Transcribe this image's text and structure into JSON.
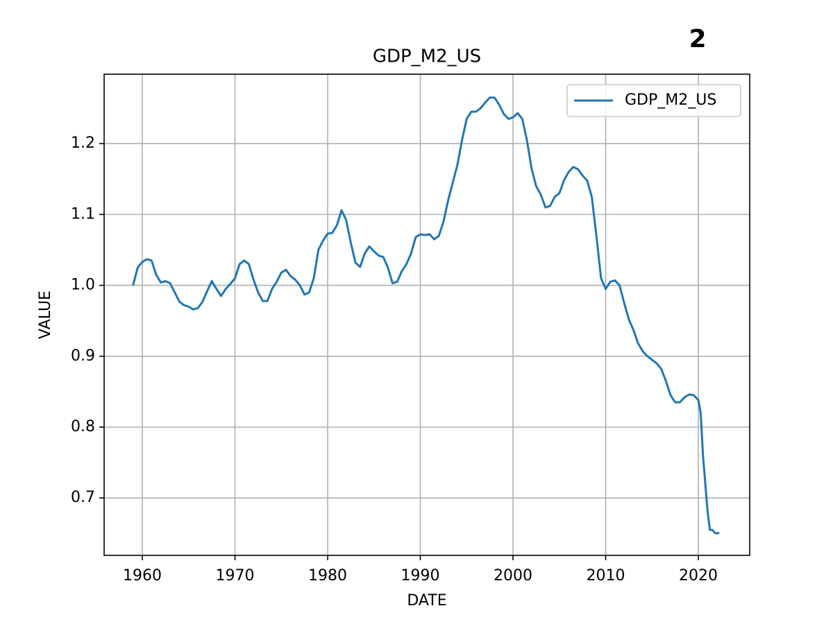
{
  "chart_data": {
    "type": "line",
    "title": "GDP_M2_US",
    "annotation": "2",
    "xlabel": "DATE",
    "ylabel": "VALUE",
    "x": [
      1959,
      1959.5,
      1960,
      1960.5,
      1961,
      1961.5,
      1962,
      1962.5,
      1963,
      1963.5,
      1964,
      1964.5,
      1965,
      1965.5,
      1966,
      1966.5,
      1967,
      1967.5,
      1968,
      1968.5,
      1969,
      1969.5,
      1970,
      1970.5,
      1971,
      1971.5,
      1972,
      1972.5,
      1973,
      1973.5,
      1974,
      1974.5,
      1975,
      1975.5,
      1976,
      1976.5,
      1977,
      1977.5,
      1978,
      1978.5,
      1979,
      1979.5,
      1980,
      1980.5,
      1981,
      1981.5,
      1982,
      1982.5,
      1983,
      1983.5,
      1984,
      1984.5,
      1985,
      1985.5,
      1986,
      1986.5,
      1987,
      1987.5,
      1988,
      1988.5,
      1989,
      1989.5,
      1990,
      1990.5,
      1991,
      1991.5,
      1992,
      1992.5,
      1993,
      1993.5,
      1994,
      1994.5,
      1995,
      1995.5,
      1996,
      1996.5,
      1997,
      1997.5,
      1998,
      1998.5,
      1999,
      1999.5,
      2000,
      2000.5,
      2001,
      2001.5,
      2002,
      2002.5,
      2003,
      2003.5,
      2004,
      2004.5,
      2005,
      2005.5,
      2006,
      2006.5,
      2007,
      2007.5,
      2008,
      2008.5,
      2009,
      2009.5,
      2010,
      2010.5,
      2011,
      2011.5,
      2012,
      2012.5,
      2013,
      2013.5,
      2014,
      2014.5,
      2015,
      2015.5,
      2016,
      2016.5,
      2017,
      2017.5,
      2018,
      2018.5,
      2019,
      2019.5,
      2020,
      2020.25,
      2020.5,
      2021,
      2021.25,
      2021.5,
      2021.75,
      2022,
      2022.25
    ],
    "series": [
      {
        "name": "GDP_M2_US",
        "color": "#1f77b4",
        "values": [
          1.0,
          1.025,
          1.033,
          1.037,
          1.035,
          1.015,
          1.004,
          1.006,
          1.003,
          0.99,
          0.977,
          0.972,
          0.97,
          0.966,
          0.968,
          0.977,
          0.992,
          1.006,
          0.995,
          0.985,
          0.995,
          1.002,
          1.01,
          1.03,
          1.035,
          1.03,
          1.008,
          0.99,
          0.978,
          0.978,
          0.995,
          1.005,
          1.018,
          1.022,
          1.013,
          1.008,
          1.0,
          0.987,
          0.99,
          1.01,
          1.05,
          1.063,
          1.073,
          1.074,
          1.085,
          1.106,
          1.092,
          1.06,
          1.032,
          1.026,
          1.045,
          1.055,
          1.048,
          1.042,
          1.04,
          1.025,
          1.003,
          1.005,
          1.02,
          1.03,
          1.045,
          1.068,
          1.072,
          1.071,
          1.072,
          1.065,
          1.07,
          1.09,
          1.12,
          1.145,
          1.17,
          1.205,
          1.235,
          1.245,
          1.245,
          1.25,
          1.258,
          1.265,
          1.265,
          1.255,
          1.242,
          1.235,
          1.237,
          1.243,
          1.235,
          1.205,
          1.165,
          1.14,
          1.128,
          1.11,
          1.112,
          1.125,
          1.13,
          1.148,
          1.16,
          1.167,
          1.164,
          1.155,
          1.148,
          1.125,
          1.07,
          1.01,
          0.995,
          1.005,
          1.007,
          1.0,
          0.975,
          0.952,
          0.937,
          0.918,
          0.907,
          0.9,
          0.895,
          0.89,
          0.882,
          0.865,
          0.845,
          0.835,
          0.835,
          0.842,
          0.846,
          0.845,
          0.838,
          0.82,
          0.76,
          0.68,
          0.655,
          0.655,
          0.651,
          0.65,
          0.651
        ]
      }
    ],
    "xlim": [
      1955.88,
      2025.54
    ],
    "xticks": [
      1960,
      1970,
      1980,
      1990,
      2000,
      2010,
      2020
    ],
    "ylim": [
      0.619,
      1.298
    ],
    "yticks": [
      0.7,
      0.8,
      0.9,
      {
        "value": 1,
        "label": "1.0"
      },
      1.1,
      1.2
    ],
    "grid": true,
    "legend": "upper right"
  }
}
